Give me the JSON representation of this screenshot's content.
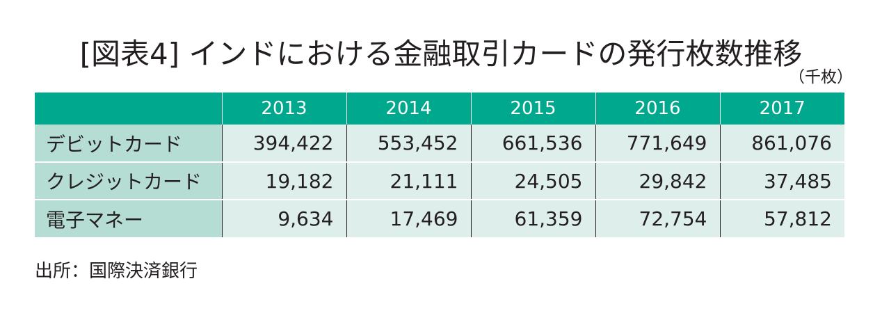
{
  "title": "[図表4] インドにおける金融取引カードの発行枚数推移",
  "unit": "（千枚）",
  "source": "出所：国際決済銀行",
  "colors": {
    "header": "#00a98e",
    "label_cell": "#b5ddd3",
    "value_cell": "#deefeb"
  },
  "chart_data": {
    "type": "table",
    "columns": [
      "2013",
      "2014",
      "2015",
      "2016",
      "2017"
    ],
    "rows": [
      {
        "label": "デビットカード",
        "values": [
          "394,422",
          "553,452",
          "661,536",
          "771,649",
          "861,076"
        ]
      },
      {
        "label": "クレジットカード",
        "values": [
          "19,182",
          "21,111",
          "24,505",
          "29,842",
          "37,485"
        ]
      },
      {
        "label": "電子マネー",
        "values": [
          "9,634",
          "17,469",
          "61,359",
          "72,754",
          "57,812"
        ]
      }
    ]
  }
}
